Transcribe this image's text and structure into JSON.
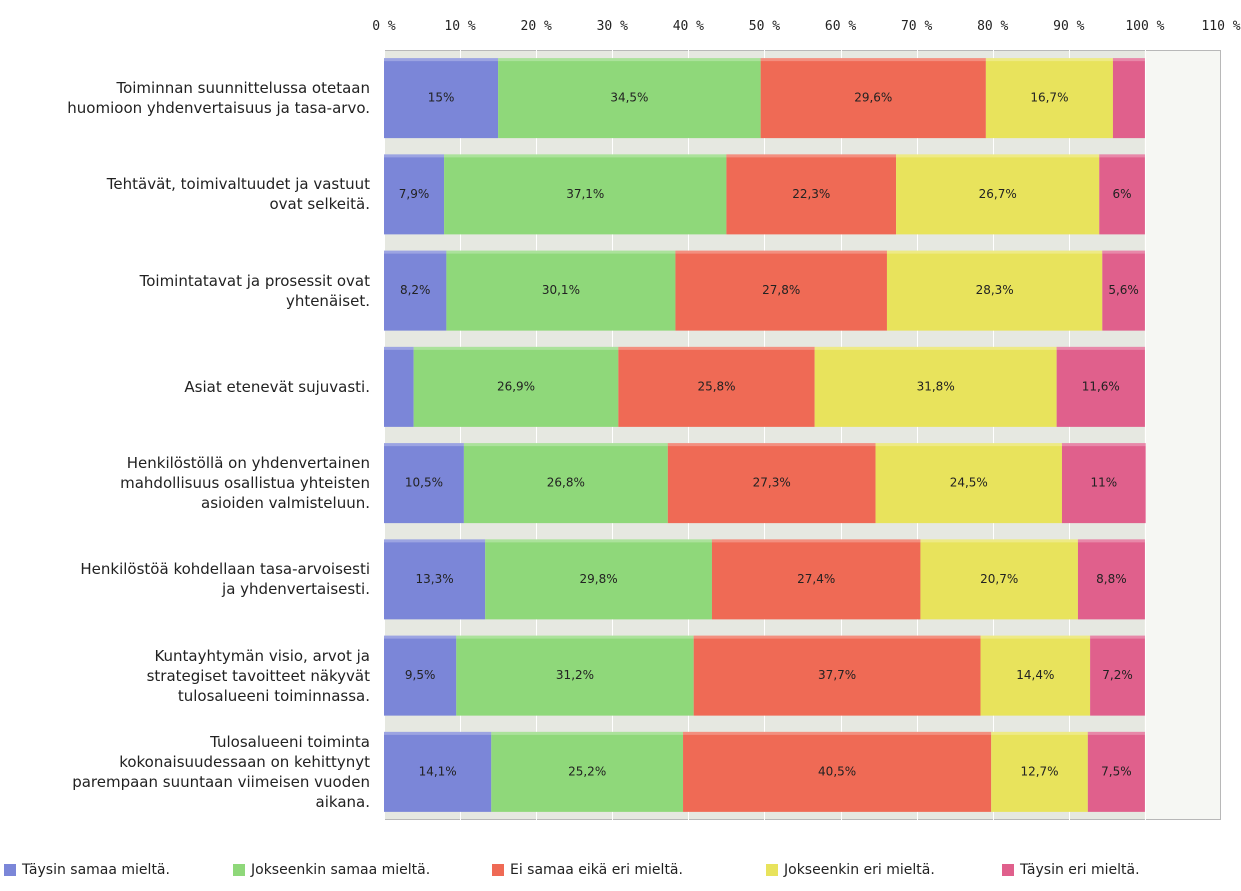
{
  "chart_data": {
    "type": "bar",
    "orientation": "horizontal",
    "stacked": true,
    "xlim": [
      0,
      110
    ],
    "xticks": [
      "0 %",
      "10 %",
      "20 %",
      "30 %",
      "40 %",
      "50 %",
      "60 %",
      "70 %",
      "80 %",
      "90 %",
      "100 %",
      "110 %"
    ],
    "grid": true,
    "legend_position": "bottom",
    "categories": [
      [
        "Toiminnan suunnittelussa otetaan",
        "huomioon yhdenvertaisuus ja tasa-arvo."
      ],
      [
        "Tehtävät, toimivaltuudet ja vastuut",
        "ovat selkeitä."
      ],
      [
        "Toimintatavat ja prosessit ovat",
        "yhtenäiset."
      ],
      [
        "Asiat etenevät sujuvasti."
      ],
      [
        "Henkilöstöllä on yhdenvertainen",
        "mahdollisuus osallistua yhteisten",
        "asioiden valmisteluun."
      ],
      [
        "Henkilöstöä kohdellaan tasa-arvoisesti",
        "ja yhdenvertaisesti."
      ],
      [
        "Kuntayhtymän visio, arvot ja",
        "strategiset tavoitteet näkyvät",
        "tulosalueeni toiminnassa."
      ],
      [
        "Tulosalueeni toiminta",
        "kokonaisuudessaan on kehittynyt",
        "parempaan suuntaan viimeisen vuoden",
        "aikana."
      ]
    ],
    "series": [
      {
        "name": "Täysin samaa mieltä.",
        "color": "#7b86d8",
        "values": [
          15,
          7.9,
          8.2,
          3.9,
          10.5,
          13.3,
          9.5,
          14.1
        ],
        "labels": [
          "15%",
          "7,9%",
          "8,2%",
          "",
          "10,5%",
          "13,3%",
          "9,5%",
          "14,1%"
        ]
      },
      {
        "name": "Jokseenkin samaa mieltä.",
        "color": "#8fd87a",
        "values": [
          34.5,
          37.1,
          30.1,
          26.9,
          26.8,
          29.8,
          31.2,
          25.2
        ],
        "labels": [
          "34,5%",
          "37,1%",
          "30,1%",
          "26,9%",
          "26,8%",
          "29,8%",
          "31,2%",
          "25,2%"
        ]
      },
      {
        "name": "Ei samaa eikä eri mieltä.",
        "color": "#ef6a55",
        "values": [
          29.6,
          22.3,
          27.8,
          25.8,
          27.3,
          27.4,
          37.7,
          40.5
        ],
        "labels": [
          "29,6%",
          "22,3%",
          "27,8%",
          "25,8%",
          "27,3%",
          "27,4%",
          "37,7%",
          "40,5%"
        ]
      },
      {
        "name": "Jokseenkin eri mieltä.",
        "color": "#e8e35c",
        "values": [
          16.7,
          26.7,
          28.3,
          31.8,
          24.5,
          20.7,
          14.4,
          12.7
        ],
        "labels": [
          "16,7%",
          "26,7%",
          "28,3%",
          "31,8%",
          "24,5%",
          "20,7%",
          "14,4%",
          "12,7%"
        ]
      },
      {
        "name": "Täysin eri mieltä.",
        "color": "#e0608c",
        "values": [
          4.2,
          6,
          5.6,
          11.6,
          11,
          8.8,
          7.2,
          7.5
        ],
        "labels": [
          "",
          "6%",
          "5,6%",
          "11,6%",
          "11%",
          "8,8%",
          "7,2%",
          "7,5%"
        ]
      }
    ]
  }
}
